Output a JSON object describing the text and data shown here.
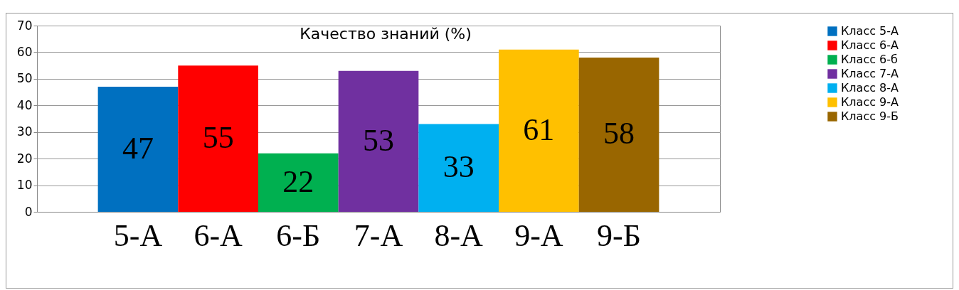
{
  "chart_data": {
    "type": "bar",
    "title": "Качество знаний (%)",
    "categories": [
      "5-А",
      "6-А",
      "6-Б",
      "7-А",
      "8-А",
      "9-А",
      "9-Б"
    ],
    "series": [
      {
        "name": "Класс 5-А",
        "color": "#0070c0",
        "values": [
          47,
          null,
          null,
          null,
          null,
          null,
          null
        ]
      },
      {
        "name": "Класс 6-А",
        "color": "#ff0000",
        "values": [
          null,
          55,
          null,
          null,
          null,
          null,
          null
        ]
      },
      {
        "name": "Класс 6-б",
        "color": "#00b050",
        "values": [
          null,
          null,
          22,
          null,
          null,
          null,
          null
        ]
      },
      {
        "name": "Класс 7-А",
        "color": "#7030a0",
        "values": [
          null,
          null,
          null,
          53,
          null,
          null,
          null
        ]
      },
      {
        "name": "Класс 8-А",
        "color": "#00b0f0",
        "values": [
          null,
          null,
          null,
          null,
          33,
          null,
          null
        ]
      },
      {
        "name": "Класс 9-А",
        "color": "#ffc000",
        "values": [
          null,
          null,
          null,
          null,
          null,
          61,
          null
        ]
      },
      {
        "name": "Класс 9-Б",
        "color": "#996600",
        "values": [
          null,
          null,
          null,
          null,
          null,
          null,
          58
        ]
      }
    ],
    "ylim": [
      0,
      70
    ],
    "yticks": [
      0,
      10,
      20,
      30,
      40,
      50,
      60,
      70
    ],
    "grid": "y",
    "legend": "right",
    "data_labels": true
  }
}
